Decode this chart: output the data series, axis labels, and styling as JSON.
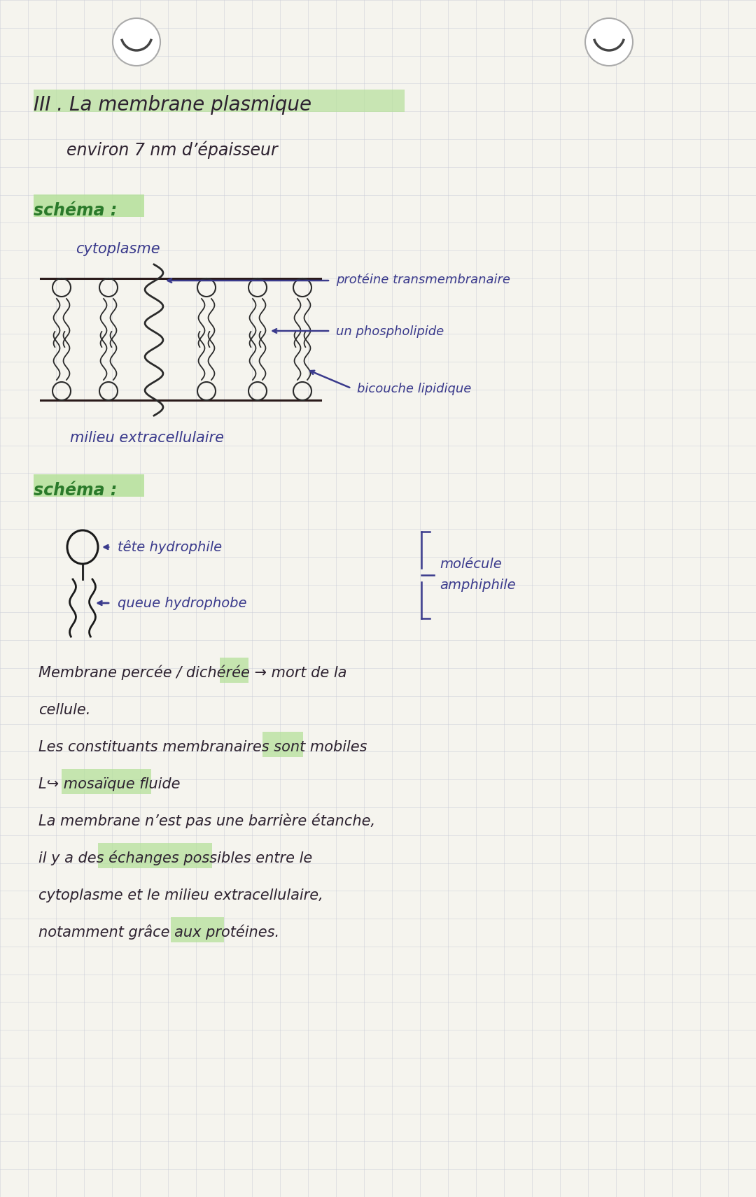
{
  "bg_color": "#f5f4ee",
  "grid_color": "#c5c8d5",
  "blue_ink": "#3a3a8c",
  "dark_ink": "#2d2230",
  "green_ink": "#2a7a2a",
  "green_highlight": "#b5e09a",
  "title": "III . La membrane plasmique",
  "subtitle": "environ 7 nm d’épaisseur",
  "schema1": "schéma :",
  "cytoplasme": "cytoplasme",
  "milieu_extra": "milieu extracellulaire",
  "label_proteine": "protéine transmembranaire",
  "label_phospho": "un phospholipide",
  "label_bicouche": "bicouche lipidique",
  "schema2": "schéma :",
  "label_tete": "tête hydrophile",
  "label_queue": "queue hydrophobe",
  "label_molecule_line1": "molécule",
  "label_molecule_line2": "amphiphile",
  "para1_line1": "Membrane percée / dichérée → mort de la",
  "para1_line2": "cellule.",
  "para2": "Les constituants membranaires sont mobiles",
  "para3": "L↪ mosaïque fluide",
  "para4_line1": "La membrane n’est pas une barrière étanche,",
  "para4_line2": "il y a des échanges possibles entre le",
  "para4_line3": "cytoplasme et le milieu extracellulaire,",
  "para4_line4": "notamment grâce aux protéines."
}
